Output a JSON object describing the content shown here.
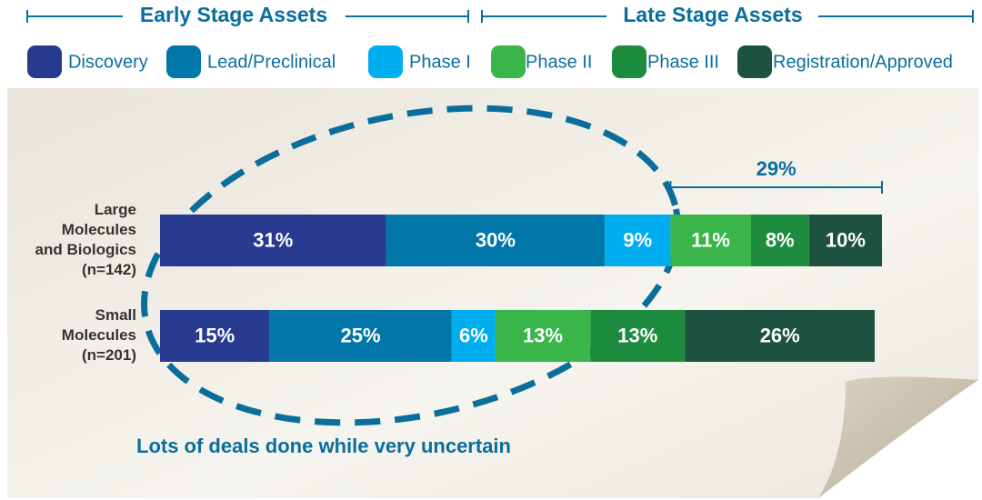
{
  "chart_data": {
    "type": "stacked-barh",
    "header": [
      "Early Stage Assets",
      "Late Stage Assets"
    ],
    "categories": [
      [
        "Large",
        "Molecules",
        "and Biologics",
        "(n=142)"
      ],
      [
        "Small",
        "Molecules",
        "(n=201)"
      ]
    ],
    "series": [
      {
        "name": "Discovery",
        "color": "#283a8f",
        "values": [
          31,
          15
        ],
        "value_labels": [
          "31%",
          "15%"
        ]
      },
      {
        "name": "Lead/Preclinical",
        "color": "#0077a8",
        "values": [
          30,
          25
        ],
        "value_labels": [
          "30%",
          "25%"
        ]
      },
      {
        "name": "Phase I",
        "color": "#00aeef",
        "values": [
          9,
          6
        ],
        "value_labels": [
          "9%",
          "6%"
        ]
      },
      {
        "name": "Phase II",
        "color": "#39b54a",
        "values": [
          11,
          13
        ],
        "value_labels": [
          "11%",
          "13%"
        ]
      },
      {
        "name": "Phase III",
        "color": "#1e8c3e",
        "values": [
          8,
          13
        ],
        "value_labels": [
          "8%",
          "13%"
        ]
      },
      {
        "name": "Registration/Approved",
        "color": "#1d5240",
        "values": [
          10,
          26
        ],
        "value_labels": [
          "10%",
          "26%"
        ]
      }
    ],
    "xlim": [
      0,
      99
    ],
    "bracket_label": "29%",
    "annotation": "Lots of deals done while very uncertain"
  }
}
